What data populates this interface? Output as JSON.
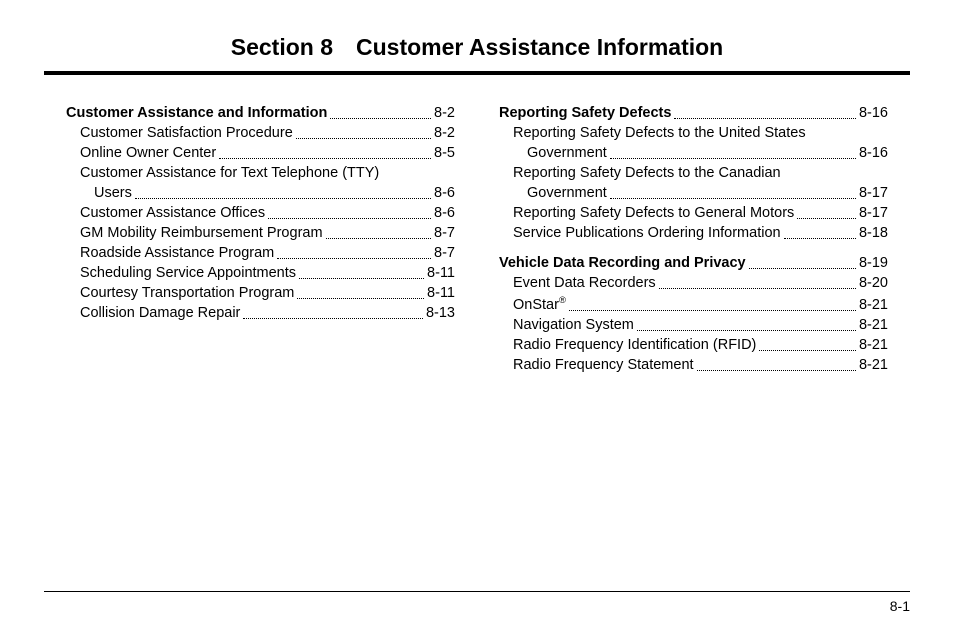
{
  "title": "Section 8 Customer Assistance Information",
  "pageNumber": "8-1",
  "leftColumn": [
    {
      "head": {
        "label": "Customer Assistance and Information",
        "page": "8-2"
      },
      "items": [
        {
          "label": "Customer Satisfaction Procedure",
          "page": "8-2"
        },
        {
          "label": "Online Owner Center",
          "page": "8-5"
        },
        {
          "label": "Customer Assistance for Text Telephone (TTY)",
          "cont": "Users",
          "page": "8-6"
        },
        {
          "label": "Customer Assistance Offices",
          "page": "8-6"
        },
        {
          "label": "GM Mobility Reimbursement Program",
          "page": "8-7"
        },
        {
          "label": "Roadside Assistance Program",
          "page": "8-7"
        },
        {
          "label": "Scheduling Service Appointments",
          "page": "8-11"
        },
        {
          "label": "Courtesy Transportation Program",
          "page": "8-11"
        },
        {
          "label": "Collision Damage Repair",
          "page": "8-13"
        }
      ]
    }
  ],
  "rightColumn": [
    {
      "head": {
        "label": "Reporting Safety Defects",
        "page": "8-16"
      },
      "items": [
        {
          "label": "Reporting Safety Defects to the United States",
          "cont": "Government",
          "page": "8-16"
        },
        {
          "label": "Reporting Safety Defects to the Canadian",
          "cont": "Government",
          "page": "8-17"
        },
        {
          "label": "Reporting Safety Defects to General Motors",
          "page": "8-17"
        },
        {
          "label": "Service Publications Ordering Information",
          "page": "8-18"
        }
      ]
    },
    {
      "head": {
        "label": "Vehicle Data Recording and Privacy",
        "page": "8-19"
      },
      "items": [
        {
          "label": "Event Data Recorders",
          "page": "8-20"
        },
        {
          "label": "OnStar",
          "sup": "®",
          "page": "8-21"
        },
        {
          "label": "Navigation System",
          "page": "8-21"
        },
        {
          "label": "Radio Frequency Identification (RFID)",
          "page": "8-21"
        },
        {
          "label": "Radio Frequency Statement",
          "page": "8-21"
        }
      ]
    }
  ]
}
